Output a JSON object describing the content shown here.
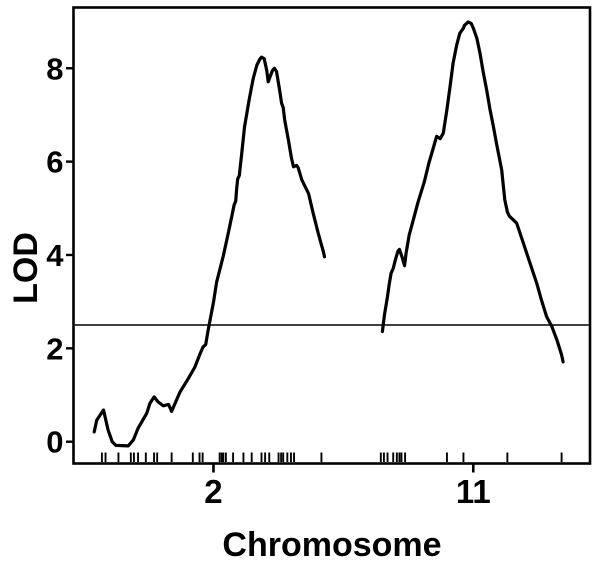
{
  "figure": {
    "background_color": "#ffffff",
    "ink_color": "#000000"
  },
  "chart_data": {
    "type": "line",
    "title": "",
    "xlabel": "Chromosome",
    "ylabel": "LOD",
    "grid": false,
    "legend": false,
    "y_axis": {
      "ticks": [
        0,
        2,
        4,
        6,
        8
      ],
      "range": [
        -0.47,
        9.3
      ]
    },
    "x_axis": {
      "kind": "genome position across two chromosomes (normalized 0-1 across plot width)",
      "ticks": [
        {
          "label": "2",
          "pos": 0.271
        },
        {
          "label": "11",
          "pos": 0.774
        }
      ]
    },
    "threshold_line": {
      "lod": 2.5
    },
    "series": [
      {
        "name": "chromosome-2-lod",
        "peak_lod": 8.24,
        "points": [
          [
            0.04,
            0.21
          ],
          [
            0.045,
            0.46
          ],
          [
            0.058,
            0.68
          ],
          [
            0.067,
            0.25
          ],
          [
            0.075,
            0.0
          ],
          [
            0.082,
            -0.08
          ],
          [
            0.106,
            -0.09
          ],
          [
            0.116,
            0.04
          ],
          [
            0.125,
            0.29
          ],
          [
            0.142,
            0.61
          ],
          [
            0.148,
            0.82
          ],
          [
            0.156,
            0.96
          ],
          [
            0.164,
            0.85
          ],
          [
            0.174,
            0.77
          ],
          [
            0.184,
            0.8
          ],
          [
            0.19,
            0.65
          ],
          [
            0.206,
            1.06
          ],
          [
            0.222,
            1.35
          ],
          [
            0.235,
            1.6
          ],
          [
            0.245,
            1.88
          ],
          [
            0.251,
            2.03
          ],
          [
            0.256,
            2.08
          ],
          [
            0.26,
            2.35
          ],
          [
            0.271,
            2.99
          ],
          [
            0.277,
            3.42
          ],
          [
            0.284,
            3.72
          ],
          [
            0.29,
            3.98
          ],
          [
            0.299,
            4.43
          ],
          [
            0.307,
            4.86
          ],
          [
            0.311,
            5.07
          ],
          [
            0.314,
            5.15
          ],
          [
            0.316,
            5.43
          ],
          [
            0.318,
            5.63
          ],
          [
            0.321,
            5.7
          ],
          [
            0.326,
            6.21
          ],
          [
            0.331,
            6.74
          ],
          [
            0.34,
            7.32
          ],
          [
            0.348,
            7.78
          ],
          [
            0.355,
            8.07
          ],
          [
            0.361,
            8.2
          ],
          [
            0.364,
            8.24
          ],
          [
            0.369,
            8.21
          ],
          [
            0.374,
            7.96
          ],
          [
            0.377,
            7.71
          ],
          [
            0.381,
            7.83
          ],
          [
            0.385,
            7.95
          ],
          [
            0.389,
            8.0
          ],
          [
            0.393,
            7.93
          ],
          [
            0.398,
            7.6
          ],
          [
            0.403,
            7.25
          ],
          [
            0.406,
            7.16
          ],
          [
            0.409,
            6.89
          ],
          [
            0.416,
            6.46
          ],
          [
            0.422,
            6.07
          ],
          [
            0.426,
            5.89
          ],
          [
            0.432,
            5.92
          ],
          [
            0.435,
            5.87
          ],
          [
            0.442,
            5.61
          ],
          [
            0.455,
            5.32
          ],
          [
            0.464,
            4.89
          ],
          [
            0.474,
            4.46
          ],
          [
            0.484,
            4.06
          ],
          [
            0.486,
            3.96
          ]
        ]
      },
      {
        "name": "chromosome-11-lod",
        "peak_lod": 8.99,
        "points": [
          [
            0.598,
            2.36
          ],
          [
            0.602,
            2.71
          ],
          [
            0.608,
            3.11
          ],
          [
            0.611,
            3.36
          ],
          [
            0.615,
            3.61
          ],
          [
            0.619,
            3.71
          ],
          [
            0.623,
            3.89
          ],
          [
            0.628,
            4.08
          ],
          [
            0.631,
            4.12
          ],
          [
            0.636,
            3.96
          ],
          [
            0.641,
            3.77
          ],
          [
            0.644,
            4.04
          ],
          [
            0.65,
            4.43
          ],
          [
            0.657,
            4.71
          ],
          [
            0.667,
            5.13
          ],
          [
            0.679,
            5.56
          ],
          [
            0.688,
            5.97
          ],
          [
            0.696,
            6.27
          ],
          [
            0.703,
            6.54
          ],
          [
            0.71,
            6.49
          ],
          [
            0.716,
            6.61
          ],
          [
            0.723,
            7.11
          ],
          [
            0.729,
            7.6
          ],
          [
            0.735,
            8.11
          ],
          [
            0.742,
            8.5
          ],
          [
            0.748,
            8.75
          ],
          [
            0.755,
            8.86
          ],
          [
            0.757,
            8.92
          ],
          [
            0.761,
            8.96
          ],
          [
            0.764,
            8.99
          ],
          [
            0.77,
            8.96
          ],
          [
            0.774,
            8.86
          ],
          [
            0.781,
            8.64
          ],
          [
            0.787,
            8.32
          ],
          [
            0.793,
            7.93
          ],
          [
            0.8,
            7.53
          ],
          [
            0.806,
            7.14
          ],
          [
            0.813,
            6.75
          ],
          [
            0.819,
            6.39
          ],
          [
            0.829,
            5.82
          ],
          [
            0.835,
            5.18
          ],
          [
            0.84,
            4.92
          ],
          [
            0.844,
            4.83
          ],
          [
            0.858,
            4.68
          ],
          [
            0.871,
            4.25
          ],
          [
            0.884,
            3.82
          ],
          [
            0.897,
            3.39
          ],
          [
            0.906,
            3.04
          ],
          [
            0.916,
            2.68
          ],
          [
            0.926,
            2.47
          ],
          [
            0.936,
            2.18
          ],
          [
            0.945,
            1.86
          ],
          [
            0.948,
            1.71
          ]
        ]
      }
    ],
    "marker_rug": {
      "description": "genetic marker positions shown as small ticks above the x-axis (normalized 0-1 across plot width)",
      "chr2": [
        0.055,
        0.062,
        0.087,
        0.111,
        0.117,
        0.125,
        0.14,
        0.156,
        0.162,
        0.19,
        0.231,
        0.244,
        0.25,
        0.283,
        0.287,
        0.29,
        0.295,
        0.309,
        0.329,
        0.345,
        0.364,
        0.371,
        0.379,
        0.397,
        0.402,
        0.406,
        0.414,
        0.421,
        0.427,
        0.48
      ],
      "chr11": [
        0.595,
        0.601,
        0.608,
        0.619,
        0.626,
        0.631,
        0.635,
        0.642,
        0.723,
        0.755,
        0.84,
        0.945
      ]
    }
  }
}
